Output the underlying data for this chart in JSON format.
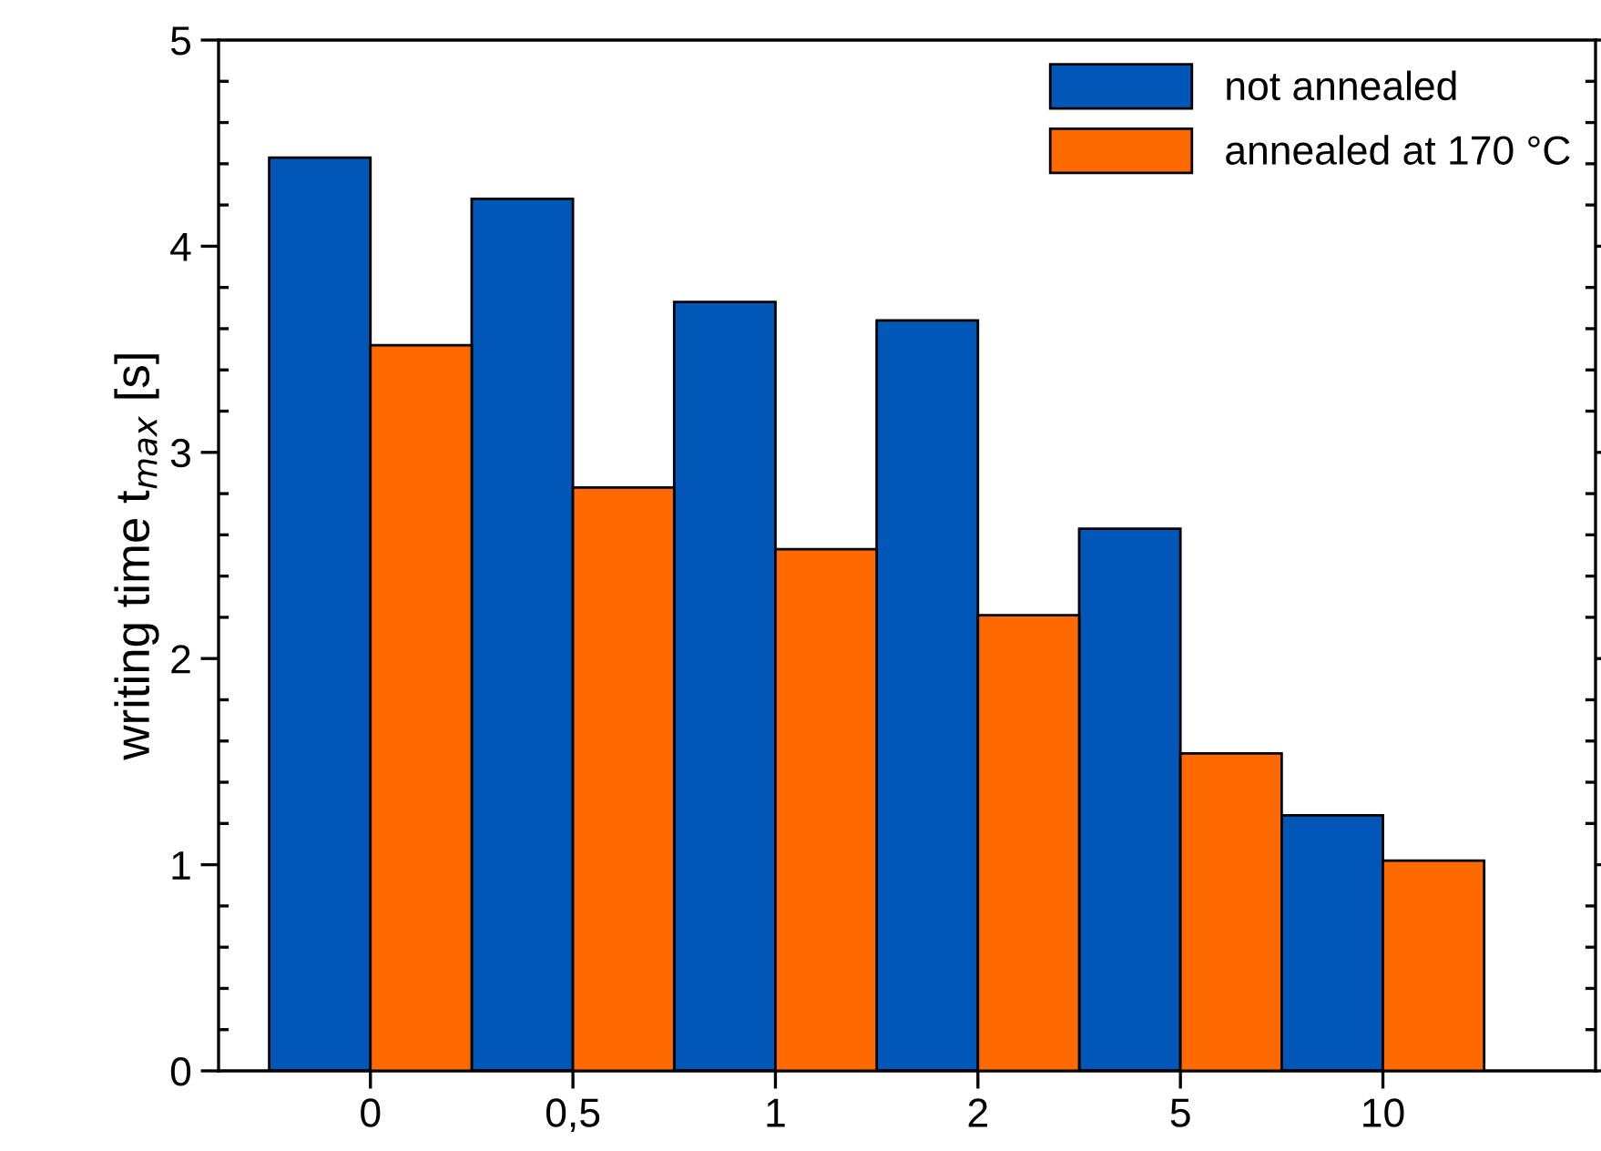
{
  "chart_data": {
    "type": "bar",
    "ylabel": "writing time t$_{max}$ [s]",
    "categories": [
      "0",
      "0,5",
      "1",
      "2",
      "5",
      "10"
    ],
    "series": [
      {
        "name": "not annealed",
        "color": "#0057b8",
        "values": [
          4.43,
          4.23,
          3.73,
          3.64,
          2.63,
          1.24
        ]
      },
      {
        "name": "annealed at 170 °C",
        "color": "#ff6a00",
        "values": [
          3.52,
          2.83,
          2.53,
          2.21,
          1.54,
          1.02
        ]
      }
    ],
    "ylim": [
      0,
      5
    ],
    "yticks": [
      0,
      1,
      2,
      3,
      4,
      5
    ],
    "grid": false,
    "legend": "top right"
  }
}
